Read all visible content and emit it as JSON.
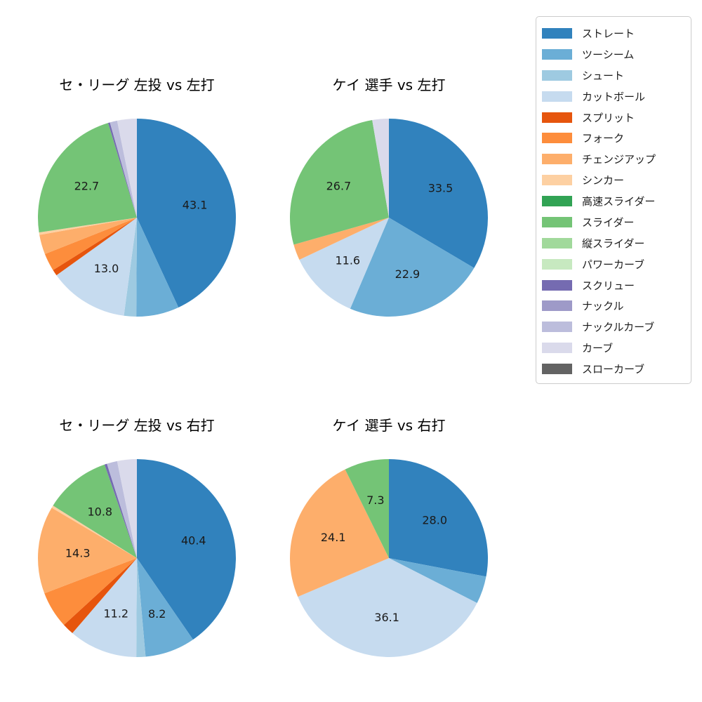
{
  "page": {
    "background": "#ffffff"
  },
  "legend": {
    "items": [
      {
        "label": "ストレート",
        "color": "#3182bd"
      },
      {
        "label": "ツーシーム",
        "color": "#6baed6"
      },
      {
        "label": "シュート",
        "color": "#9ecae1"
      },
      {
        "label": "カットボール",
        "color": "#c6dbef"
      },
      {
        "label": "スプリット",
        "color": "#e6550d"
      },
      {
        "label": "フォーク",
        "color": "#fd8d3c"
      },
      {
        "label": "チェンジアップ",
        "color": "#fdae6b"
      },
      {
        "label": "シンカー",
        "color": "#fdd0a2"
      },
      {
        "label": "高速スライダー",
        "color": "#31a354"
      },
      {
        "label": "スライダー",
        "color": "#74c476"
      },
      {
        "label": "縦スライダー",
        "color": "#a1d99b"
      },
      {
        "label": "パワーカーブ",
        "color": "#c7e9c0"
      },
      {
        "label": "スクリュー",
        "color": "#756bb1"
      },
      {
        "label": "ナックル",
        "color": "#9e9ac8"
      },
      {
        "label": "ナックルカーブ",
        "color": "#bcbddc"
      },
      {
        "label": "カーブ",
        "color": "#dadaeb"
      },
      {
        "label": "スローカーブ",
        "color": "#636363"
      }
    ]
  },
  "chart_data": [
    {
      "type": "pie",
      "title": "セ・リーグ 左投 vs 左打",
      "start_angle": "12-oclock",
      "direction": "clockwise",
      "label_threshold_pct": 7.0,
      "visible_value_labels": [
        "43.1",
        "13.0",
        "22.7"
      ],
      "series": [
        {
          "name": "ストレート",
          "value": 43.1
        },
        {
          "name": "ツーシーム",
          "value": 7.0
        },
        {
          "name": "シュート",
          "value": 2.0
        },
        {
          "name": "カットボール",
          "value": 13.0
        },
        {
          "name": "スプリット",
          "value": 1.0
        },
        {
          "name": "フォーク",
          "value": 2.9
        },
        {
          "name": "チェンジアップ",
          "value": 3.2
        },
        {
          "name": "シンカー",
          "value": 0.4
        },
        {
          "name": "スライダー",
          "value": 22.7
        },
        {
          "name": "スクリュー",
          "value": 0.3
        },
        {
          "name": "ナックルカーブ",
          "value": 1.2
        },
        {
          "name": "カーブ",
          "value": 3.2
        }
      ]
    },
    {
      "type": "pie",
      "title": "ケイ 選手 vs 左打",
      "start_angle": "12-oclock",
      "direction": "clockwise",
      "label_threshold_pct": 7.0,
      "visible_value_labels": [
        "33.5",
        "22.9",
        "11.6",
        "26.7"
      ],
      "series": [
        {
          "name": "ストレート",
          "value": 33.5
        },
        {
          "name": "ツーシーム",
          "value": 22.9
        },
        {
          "name": "カットボール",
          "value": 11.6
        },
        {
          "name": "チェンジアップ",
          "value": 2.6
        },
        {
          "name": "スライダー",
          "value": 26.7
        },
        {
          "name": "カーブ",
          "value": 2.7
        }
      ]
    },
    {
      "type": "pie",
      "title": "セ・リーグ 左投 vs 右打",
      "start_angle": "12-oclock",
      "direction": "clockwise",
      "label_threshold_pct": 7.0,
      "visible_value_labels": [
        "40.4",
        "8.2",
        "11.2",
        "14.3",
        "10.8"
      ],
      "series": [
        {
          "name": "ストレート",
          "value": 40.4
        },
        {
          "name": "ツーシーム",
          "value": 8.2
        },
        {
          "name": "シュート",
          "value": 1.5
        },
        {
          "name": "カットボール",
          "value": 11.2
        },
        {
          "name": "スプリット",
          "value": 1.9
        },
        {
          "name": "フォーク",
          "value": 6.0
        },
        {
          "name": "チェンジアップ",
          "value": 14.3
        },
        {
          "name": "シンカー",
          "value": 0.4
        },
        {
          "name": "スライダー",
          "value": 10.8
        },
        {
          "name": "スクリュー",
          "value": 0.4
        },
        {
          "name": "ナックルカーブ",
          "value": 1.7
        },
        {
          "name": "カーブ",
          "value": 3.2
        }
      ]
    },
    {
      "type": "pie",
      "title": "ケイ 選手 vs 右打",
      "start_angle": "12-oclock",
      "direction": "clockwise",
      "label_threshold_pct": 7.0,
      "visible_value_labels": [
        "28.0",
        "36.1",
        "24.1",
        "7.3"
      ],
      "series": [
        {
          "name": "ストレート",
          "value": 28.0
        },
        {
          "name": "ツーシーム",
          "value": 4.5
        },
        {
          "name": "カットボール",
          "value": 36.1
        },
        {
          "name": "チェンジアップ",
          "value": 24.1
        },
        {
          "name": "スライダー",
          "value": 7.3
        }
      ]
    }
  ]
}
